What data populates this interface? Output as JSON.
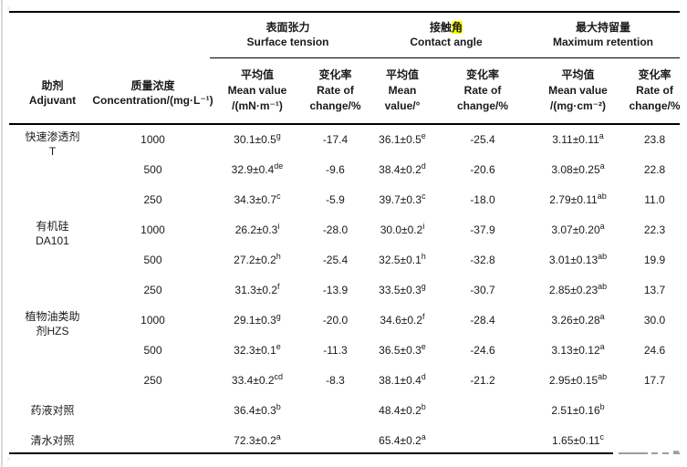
{
  "accent_highlight_color": "#ffff00",
  "table": {
    "header": {
      "adjuvant": {
        "zh": "助剂",
        "en": "Adjuvant"
      },
      "concentration": {
        "zh": "质量浓度",
        "en": "Concentration/(mg·L⁻¹)"
      },
      "groups": {
        "surface_tension": {
          "zh": "表面张力",
          "en": "Surface tension"
        },
        "contact_angle": {
          "zh_pre": "接触",
          "zh_highlight": "角",
          "en": "Contact angle"
        },
        "max_retention": {
          "zh": "最大持留量",
          "en": "Maximum retention"
        }
      },
      "subs": {
        "st_mean": {
          "l1": "平均值",
          "l2": "Mean value",
          "l3": "/(mN·m⁻¹)"
        },
        "st_rate": {
          "l1": "变化率",
          "l2": "Rate of",
          "l3": "change/%"
        },
        "ca_mean": {
          "l1": "平均值",
          "l2": "Mean",
          "l3": "value/°"
        },
        "ca_rate": {
          "l1": "变化率",
          "l2": "Rate of",
          "l3": "change/%"
        },
        "mr_mean": {
          "l1": "平均值",
          "l2": "Mean value",
          "l3": "/(mg·cm⁻²)"
        },
        "mr_rate": {
          "l1": "变化率",
          "l2": "Rate of",
          "l3": "change/%"
        }
      }
    },
    "groups": [
      {
        "name_lines": [
          "快速渗透剂",
          "T"
        ],
        "rows": [
          {
            "conc": "1000",
            "st_mean": "30.1±0.5",
            "st_sig": "g",
            "st_rate": "-17.4",
            "ca_mean": "36.1±0.5",
            "ca_sig": "e",
            "ca_rate": "-25.4",
            "mr_mean": "3.11±0.11",
            "mr_sig": "a",
            "mr_rate": "23.8"
          },
          {
            "conc": "500",
            "st_mean": "32.9±0.4",
            "st_sig": "de",
            "st_rate": "-9.6",
            "ca_mean": "38.4±0.2",
            "ca_sig": "d",
            "ca_rate": "-20.6",
            "mr_mean": "3.08±0.25",
            "mr_sig": "a",
            "mr_rate": "22.8"
          },
          {
            "conc": "250",
            "st_mean": "34.3±0.7",
            "st_sig": "c",
            "st_rate": "-5.9",
            "ca_mean": "39.7±0.3",
            "ca_sig": "c",
            "ca_rate": "-18.0",
            "mr_mean": "2.79±0.11",
            "mr_sig": "ab",
            "mr_rate": "11.0"
          }
        ]
      },
      {
        "name_lines": [
          "有机硅",
          "DA101"
        ],
        "rows": [
          {
            "conc": "1000",
            "st_mean": "26.2±0.3",
            "st_sig": "i",
            "st_rate": "-28.0",
            "ca_mean": "30.0±0.2",
            "ca_sig": "i",
            "ca_rate": "-37.9",
            "mr_mean": "3.07±0.20",
            "mr_sig": "a",
            "mr_rate": "22.3"
          },
          {
            "conc": "500",
            "st_mean": "27.2±0.2",
            "st_sig": "h",
            "st_rate": "-25.4",
            "ca_mean": "32.5±0.1",
            "ca_sig": "h",
            "ca_rate": "-32.8",
            "mr_mean": "3.01±0.13",
            "mr_sig": "ab",
            "mr_rate": "19.9"
          },
          {
            "conc": "250",
            "st_mean": "31.3±0.2",
            "st_sig": "f",
            "st_rate": "-13.9",
            "ca_mean": "33.5±0.3",
            "ca_sig": "g",
            "ca_rate": "-30.7",
            "mr_mean": "2.85±0.23",
            "mr_sig": "ab",
            "mr_rate": "13.7"
          }
        ]
      },
      {
        "name_lines": [
          "植物油类助",
          "剂HZS"
        ],
        "rows": [
          {
            "conc": "1000",
            "st_mean": "29.1±0.3",
            "st_sig": "g",
            "st_rate": "-20.0",
            "ca_mean": "34.6±0.2",
            "ca_sig": "f",
            "ca_rate": "-28.4",
            "mr_mean": "3.26±0.28",
            "mr_sig": "a",
            "mr_rate": "30.0"
          },
          {
            "conc": "500",
            "st_mean": "32.3±0.1",
            "st_sig": "e",
            "st_rate": "-11.3",
            "ca_mean": "36.5±0.3",
            "ca_sig": "e",
            "ca_rate": "-24.6",
            "mr_mean": "3.13±0.12",
            "mr_sig": "a",
            "mr_rate": "24.6"
          },
          {
            "conc": "250",
            "st_mean": "33.4±0.2",
            "st_sig": "cd",
            "st_rate": "-8.3",
            "ca_mean": "38.1±0.4",
            "ca_sig": "d",
            "ca_rate": "-21.2",
            "mr_mean": "2.95±0.15",
            "mr_sig": "ab",
            "mr_rate": "17.7"
          }
        ]
      }
    ],
    "controls": [
      {
        "name": "药液对照",
        "st_mean": "36.4±0.3",
        "st_sig": "b",
        "ca_mean": "48.4±0.2",
        "ca_sig": "b",
        "mr_mean": "2.51±0.16",
        "mr_sig": "b"
      },
      {
        "name": "清水对照",
        "st_mean": "72.3±0.2",
        "st_sig": "a",
        "ca_mean": "65.4±0.2",
        "ca_sig": "a",
        "mr_mean": "1.65±0.11",
        "mr_sig": "c"
      }
    ]
  }
}
